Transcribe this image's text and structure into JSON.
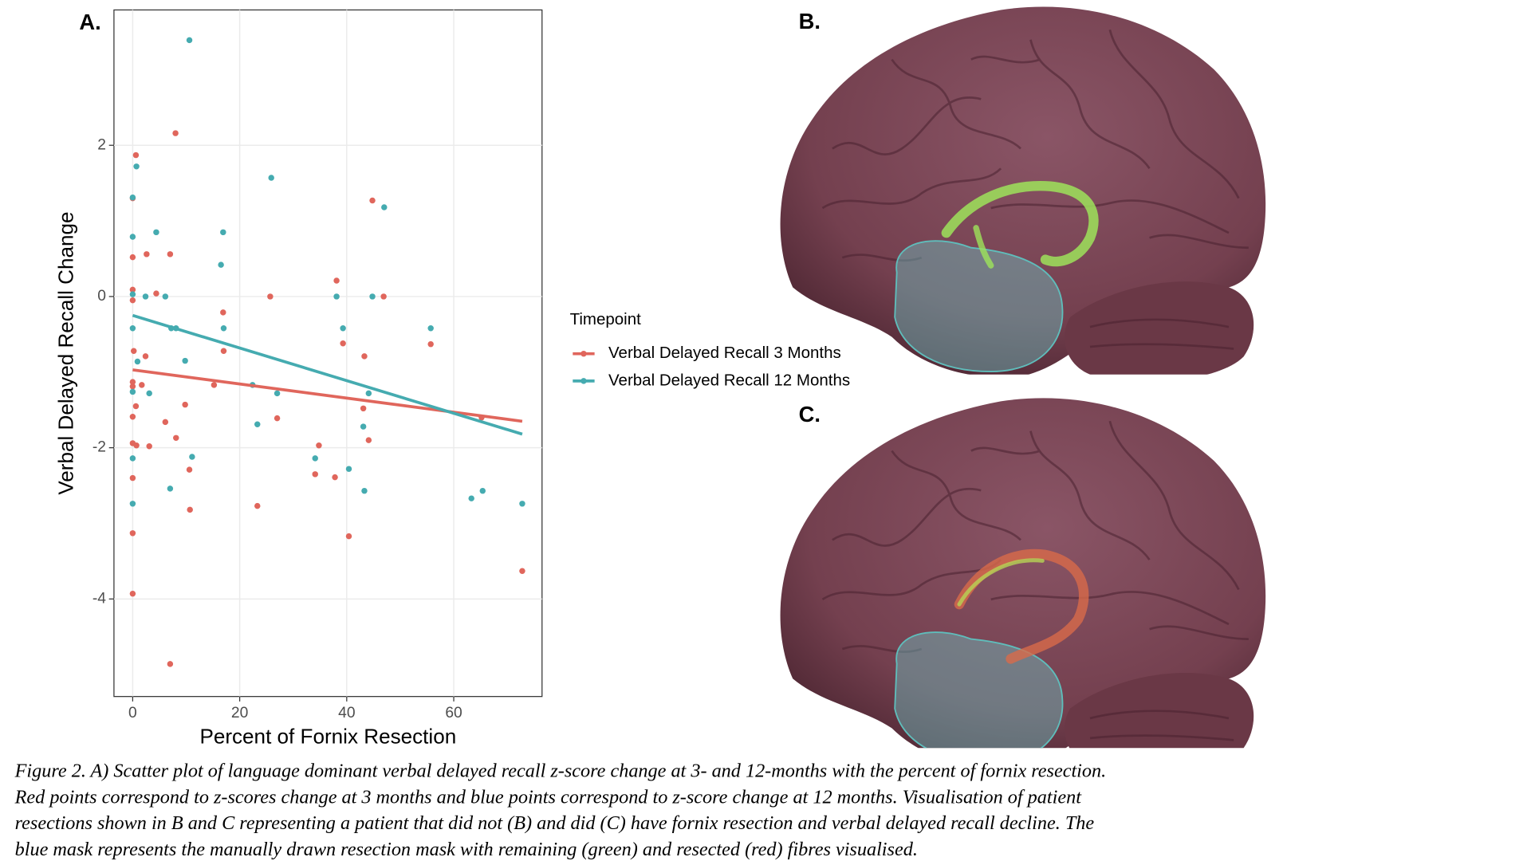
{
  "chart_data": {
    "type": "scatter",
    "panel_label": "A.",
    "xlabel": "Percent of Fornix Resection",
    "ylabel": "Verbal Delayed Recall Change",
    "xlim": [
      -3.5,
      76.5
    ],
    "ylim": [
      -5.29,
      3.79
    ],
    "xticks": [
      0,
      20,
      40,
      60
    ],
    "yticks": [
      -4,
      -2,
      0,
      2
    ],
    "grid": true,
    "legend_title": "Timepoint",
    "series": [
      {
        "name": "Verbal Delayed Recall 3 Months",
        "color": "#e0665c",
        "x": [
          0.6,
          8.0,
          0,
          0,
          2.6,
          7.0,
          0,
          4.4,
          0,
          25.7,
          46.9,
          38.1,
          44.8,
          16.9,
          17.0,
          0.2,
          2.4,
          43.3,
          39.3,
          55.7,
          0,
          0,
          1.7,
          15.2,
          0.6,
          9.8,
          43.1,
          27.0,
          6.1,
          0,
          8.1,
          44.1,
          0,
          0.7,
          3.1,
          34.8,
          10.6,
          34.1,
          37.8,
          0,
          10.7,
          23.3,
          40.4,
          0,
          72.8,
          0,
          7.0,
          65.2
        ],
        "values": [
          1.87,
          2.16,
          1.3,
          0.52,
          0.56,
          0.56,
          0.09,
          0.04,
          -0.05,
          0,
          0,
          0.21,
          1.27,
          -0.21,
          -0.72,
          -0.72,
          -0.79,
          -0.79,
          -0.62,
          -0.63,
          -1.13,
          -1.19,
          -1.17,
          -1.17,
          -1.45,
          -1.43,
          -1.48,
          -1.61,
          -1.66,
          -1.59,
          -1.87,
          -1.9,
          -1.94,
          -1.97,
          -1.98,
          -1.97,
          -2.29,
          -2.35,
          -2.39,
          -2.4,
          -2.82,
          -2.77,
          -3.17,
          -3.13,
          -3.63,
          -3.93,
          -4.86,
          -1.6
        ]
      },
      {
        "name": "Verbal Delayed Recall 12 Months",
        "color": "#45abb0",
        "x": [
          10.6,
          0.7,
          0,
          25.9,
          47.0,
          0,
          4.4,
          16.9,
          16.5,
          0,
          2.4,
          6.1,
          38.1,
          44.8,
          0,
          7.2,
          8.1,
          17.0,
          39.3,
          55.7,
          9.8,
          0.9,
          0,
          3.1,
          27.0,
          44.1,
          22.4,
          23.3,
          43.1,
          0,
          11.1,
          34.1,
          40.4,
          7.0,
          43.3,
          65.4,
          63.3,
          0,
          72.8
        ],
        "values": [
          3.39,
          1.72,
          1.31,
          1.57,
          1.18,
          0.79,
          0.85,
          0.85,
          0.42,
          0.03,
          0,
          0,
          0,
          0,
          -0.42,
          -0.42,
          -0.42,
          -0.42,
          -0.42,
          -0.42,
          -0.85,
          -0.86,
          -1.26,
          -1.28,
          -1.28,
          -1.28,
          -1.17,
          -1.69,
          -1.72,
          -2.14,
          -2.12,
          -2.14,
          -2.28,
          -2.54,
          -2.57,
          -2.57,
          -2.67,
          -2.74,
          -2.74
        ]
      }
    ],
    "fits": [
      {
        "color": "#e0665c",
        "x": [
          0,
          72.8
        ],
        "values": [
          -0.97,
          -1.65
        ]
      },
      {
        "color": "#45abb0",
        "x": [
          0,
          72.8
        ],
        "values": [
          -0.25,
          -1.82
        ]
      }
    ]
  },
  "panels": [
    {
      "label": "B."
    },
    {
      "label": "C."
    }
  ],
  "caption": [
    "Figure 2. A) Scatter plot of language dominant verbal delayed recall z-score change at 3- and 12-months with the percent of fornix resection.",
    "Red points correspond to z-scores change at 3 months and blue points correspond to z-score change at 12 months. Visualisation of patient",
    "resections shown in B and C representing a patient that did not (B) and did (C) have fornix resection and verbal delayed recall decline. The",
    "blue mask represents the manually drawn resection mask with remaining (green) and resected (red) fibres visualised."
  ]
}
